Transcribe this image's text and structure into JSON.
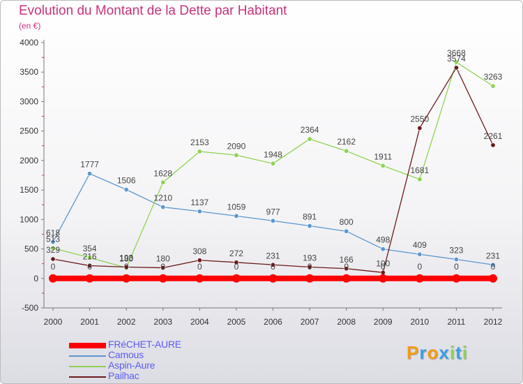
{
  "header": {
    "title": "Evolution du Montant de la Dette par Habitant",
    "subtitle": "(en €)"
  },
  "chart_data": {
    "type": "line",
    "title": "Evolution du Montant de la Dette par Habitant",
    "subtitle": "(en €)",
    "xlabel": "",
    "ylabel": "",
    "x": [
      "2000",
      "2001",
      "2002",
      "2003",
      "2004",
      "2005",
      "2006",
      "2007",
      "2008",
      "2009",
      "2010",
      "2011",
      "2012"
    ],
    "ylim": [
      -500,
      4000
    ],
    "yticks": [
      -500,
      0,
      500,
      1000,
      1500,
      2000,
      2500,
      3000,
      3500,
      4000
    ],
    "grid": false,
    "legend_position": "bottom-left",
    "series": [
      {
        "name": "FRéCHET-AURE",
        "color": "#ff0000",
        "values": [
          0,
          0,
          0,
          0,
          0,
          0,
          0,
          0,
          0,
          0,
          0,
          0,
          0
        ]
      },
      {
        "name": "Camous",
        "color": "#5b97cf",
        "values": [
          618,
          1777,
          1506,
          1210,
          1137,
          1059,
          977,
          891,
          800,
          498,
          409,
          323,
          231
        ]
      },
      {
        "name": "Aspin-Aure",
        "color": "#8ed352",
        "values": [
          513,
          354,
          180,
          1628,
          2153,
          2090,
          1948,
          2364,
          2162,
          1911,
          1681,
          3668,
          3263
        ]
      },
      {
        "name": "Pailhac",
        "color": "#6b1a1a",
        "values": [
          329,
          216,
          193,
          180,
          308,
          272,
          231,
          193,
          166,
          100,
          2550,
          3574,
          2261
        ]
      }
    ]
  },
  "logo": {
    "letters": [
      "P",
      "r",
      "o",
      "x",
      "i",
      "t",
      "i"
    ],
    "colors": [
      "#f39c12",
      "#3aa0e0",
      "#f39c12",
      "#3aa0e0",
      "#8ed352",
      "#3aa0e0",
      "#8ed352"
    ]
  }
}
